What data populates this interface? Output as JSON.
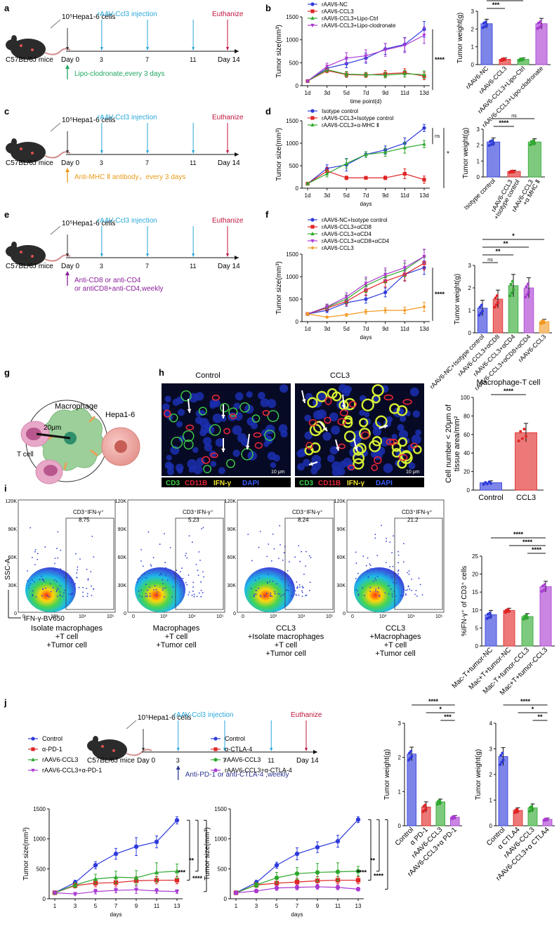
{
  "colors": {
    "blue": "#2f3bdc",
    "red": "#e02525",
    "green": "#2ea82e",
    "purple": "#a93ad1",
    "orange": "#f29a25",
    "cyan": "#2aa7d9",
    "darkred": "#c0143c",
    "lipo": "#1fa65f",
    "mhc": "#e89b1b",
    "cd": "#8a1e9a",
    "pd": "#2c3590"
  },
  "schemes": [
    {
      "panel": "a",
      "cells": "10⁵Hepa1-6 cells",
      "mice": "C57BL/6J mice",
      "inj": "rAAV-Ccl3 injection",
      "euth": "Euthanize",
      "day0": "Day 0",
      "d3": "3",
      "d7": "7",
      "d11": "11",
      "d14": "Day 14",
      "treat": [
        "Lipo-clodronate,every 3 days"
      ]
    },
    {
      "panel": "c",
      "cells": "10⁵Hepa1-6 cells",
      "mice": "C57BL/6J mice",
      "inj": "rAAV-Ccl3 injection",
      "euth": "Euthanize",
      "day0": "Day 0",
      "d3": "3",
      "d7": "7",
      "d11": "11",
      "d14": "Day 14",
      "treat": [
        "Anti-MHC Ⅱ antibody，every 3 days"
      ]
    },
    {
      "panel": "e",
      "cells": "10⁵Hepa1-6 cells",
      "mice": "C57BL/6J mice",
      "inj": "rAAV-Ccl3 injection",
      "euth": "Euthanize",
      "day0": "Day 0",
      "d3": "3",
      "d7": "7",
      "d11": "11",
      "d14": "Day 14",
      "treat": [
        "Anti-CD8 or anti-CD4",
        "or antiCD8+anti-CD4,weekly"
      ]
    },
    {
      "panel": "j",
      "cells": "10⁵Hepa1-6 cells",
      "mice": "C57BL/6J mice",
      "inj": "rAAV-Ccl3 injection",
      "euth": "Euthanize",
      "day0": "Day 0",
      "d3": "3",
      "d7": "7",
      "d11": "11",
      "d14": "Day 14",
      "treat": [
        "Anti-PD-1 or anti-CTLA-4 ,weekly"
      ]
    }
  ],
  "chart_data": [
    {
      "id": "b",
      "type": "line",
      "ylabel": "Tumor size(mm³)",
      "xlabel": "time point(d)",
      "categories": [
        "1d",
        "3d",
        "5d",
        "7d",
        "9d",
        "11d",
        "13d"
      ],
      "ylim": [
        0,
        1500
      ],
      "yticks": [
        0,
        500,
        1000,
        1500
      ],
      "series": [
        {
          "name": "rAAV6-NC",
          "color": "blue",
          "marker": "circle",
          "values": [
            100,
            380,
            480,
            600,
            800,
            900,
            1230
          ],
          "err": [
            20,
            60,
            90,
            110,
            120,
            150,
            170
          ]
        },
        {
          "name": "rAAV6-CCL3",
          "color": "red",
          "marker": "square",
          "values": [
            100,
            330,
            240,
            230,
            260,
            280,
            210
          ],
          "err": [
            20,
            50,
            60,
            50,
            70,
            90,
            80
          ]
        },
        {
          "name": "rAAV6-CCL3+Lipo-Ctrl",
          "color": "green",
          "marker": "triangle",
          "values": [
            100,
            350,
            250,
            240,
            230,
            260,
            240
          ],
          "err": [
            20,
            50,
            60,
            50,
            60,
            70,
            80
          ]
        },
        {
          "name": "rAAV6-CCL3+Lipo-clodronate",
          "color": "purple",
          "marker": "tridown",
          "values": [
            100,
            420,
            600,
            650,
            780,
            880,
            1100
          ],
          "err": [
            20,
            70,
            120,
            130,
            140,
            160,
            180
          ]
        }
      ],
      "sig": "****"
    },
    {
      "id": "b-bar",
      "type": "bar",
      "ylabel": "Tumor weight(g)",
      "ylim": [
        0,
        3
      ],
      "yticks": [
        0,
        1,
        2,
        3
      ],
      "categories": [
        "rAAV6-NC",
        "rAAV6-CCL3",
        "rAAV6-CCL3+Lipo-Ctrl",
        "rAAV6-CCL3+Lipo-clodronate"
      ],
      "values": [
        2.3,
        0.3,
        0.3,
        2.3
      ],
      "err": [
        0.25,
        0.08,
        0.08,
        0.3
      ],
      "colors": [
        "blue",
        "red",
        "green",
        "purple"
      ],
      "brackets": [
        {
          "from": 0,
          "to": 3,
          "label": "ns"
        },
        {
          "from": 0,
          "to": 2,
          "label": "***"
        },
        {
          "from": 0,
          "to": 1,
          "label": "***"
        }
      ]
    },
    {
      "id": "d",
      "type": "line",
      "ylabel": "Tumor size(mm³)",
      "xlabel": "days",
      "categories": [
        "1d",
        "3d",
        "5d",
        "7d",
        "9d",
        "11d",
        "13d"
      ],
      "ylim": [
        0,
        1500
      ],
      "yticks": [
        0,
        500,
        1000,
        1500
      ],
      "series": [
        {
          "name": "Isotype control",
          "color": "blue",
          "marker": "circle",
          "values": [
            100,
            440,
            520,
            750,
            850,
            1000,
            1340
          ],
          "err": [
            20,
            80,
            140,
            60,
            90,
            120,
            80
          ]
        },
        {
          "name": "rAAV6-CCL3+Isotype control",
          "color": "red",
          "marker": "square",
          "values": [
            100,
            380,
            230,
            230,
            230,
            320,
            190
          ],
          "err": [
            20,
            80,
            40,
            30,
            40,
            110,
            80
          ]
        },
        {
          "name": "rAAV6-CCL3+α-MHC Ⅱ",
          "color": "green",
          "marker": "triangle",
          "values": [
            100,
            320,
            550,
            750,
            800,
            900,
            980
          ],
          "err": [
            20,
            70,
            100,
            60,
            90,
            120,
            80
          ]
        }
      ],
      "sig_inner": "ns",
      "sig": "*"
    },
    {
      "id": "d-bar",
      "type": "bar",
      "ylabel": "Tumor weight(g)",
      "ylim": [
        0,
        3
      ],
      "yticks": [
        0,
        1,
        2,
        3
      ],
      "categories": [
        "Isotype control",
        "rAAV6-CCL3 +Isotype control",
        "rAAV6-CCL3 +α MHC Ⅱ"
      ],
      "values": [
        2.2,
        0.35,
        2.2
      ],
      "err": [
        0.25,
        0.07,
        0.2
      ],
      "colors": [
        "blue",
        "red",
        "green"
      ],
      "brackets": [
        {
          "from": 0,
          "to": 2,
          "label": "ns"
        },
        {
          "from": 0,
          "to": 1,
          "label": "****"
        }
      ]
    },
    {
      "id": "f",
      "type": "line",
      "ylabel": "Tumor size(mm³)",
      "xlabel": "days",
      "categories": [
        "1d",
        "3d",
        "5d",
        "7d",
        "9d",
        "11d",
        "13d"
      ],
      "ylim": [
        0,
        1500
      ],
      "yticks": [
        0,
        500,
        1000,
        1500
      ],
      "series": [
        {
          "name": "rAAV6-NC+Isotype control",
          "color": "blue",
          "marker": "circle",
          "values": [
            170,
            250,
            420,
            500,
            650,
            1050,
            1200
          ],
          "err": [
            30,
            50,
            80,
            90,
            100,
            140,
            150
          ]
        },
        {
          "name": "rAAV6-CCL3+αCD8",
          "color": "red",
          "marker": "square",
          "values": [
            170,
            300,
            450,
            700,
            900,
            1050,
            1300
          ],
          "err": [
            30,
            60,
            80,
            120,
            130,
            150,
            150
          ]
        },
        {
          "name": "rAAV6-CCL3+αCD4",
          "color": "green",
          "marker": "triangle",
          "values": [
            170,
            320,
            500,
            800,
            1000,
            1150,
            1450
          ],
          "err": [
            30,
            60,
            90,
            150,
            140,
            150,
            150
          ]
        },
        {
          "name": "rAAV6-CCL3+αCD8+αCD4",
          "color": "purple",
          "marker": "tridown",
          "values": [
            170,
            330,
            550,
            850,
            1050,
            1200,
            1450
          ],
          "err": [
            30,
            60,
            90,
            140,
            140,
            160,
            160
          ]
        },
        {
          "name": "rAAV6-CCL3",
          "color": "orange",
          "marker": "diamond",
          "values": [
            170,
            100,
            150,
            220,
            250,
            250,
            330
          ],
          "err": [
            30,
            20,
            30,
            50,
            60,
            70,
            100
          ]
        }
      ],
      "sig": "****"
    },
    {
      "id": "f-bar",
      "type": "bar",
      "ylabel": "Tumor weight(g)",
      "ylim": [
        0,
        3
      ],
      "yticks": [
        0,
        1,
        2,
        3
      ],
      "categories": [
        "rAAV6-NC+Isotype control",
        "rAAV6-CCL3+αCD8",
        "rAAV6-CCL3+αCD4",
        "rAAV6-CCL3+αCD8+αCD4",
        "rAAV6-CCL3"
      ],
      "values": [
        1.1,
        1.5,
        2.1,
        2.0,
        0.5
      ],
      "err": [
        0.35,
        0.4,
        0.5,
        0.45,
        0.1
      ],
      "colors": [
        "blue",
        "red",
        "green",
        "purple",
        "orange"
      ],
      "brackets": [
        {
          "from": 0,
          "to": 4,
          "label": "*"
        },
        {
          "from": 0,
          "to": 3,
          "label": "**"
        },
        {
          "from": 0,
          "to": 2,
          "label": "**"
        },
        {
          "from": 0,
          "to": 1,
          "label": "ns"
        }
      ]
    },
    {
      "id": "h-bar",
      "type": "bar",
      "title": "Macrophage-T cell",
      "ylabel": "Cell number < 20μm of tissue area/mm²",
      "ylim": [
        0,
        100
      ],
      "yticks": [
        0,
        20,
        40,
        60,
        80,
        100
      ],
      "categories": [
        "Control",
        "CCL3"
      ],
      "values": [
        8,
        62
      ],
      "err": [
        2,
        10
      ],
      "colors": [
        "blue",
        "red"
      ],
      "brackets": [
        {
          "from": 0,
          "to": 1,
          "label": "****"
        }
      ]
    },
    {
      "id": "i-bar",
      "type": "bar",
      "ylabel": "%IFN-γ⁺ of CD3⁺ cells",
      "ylim": [
        0,
        25
      ],
      "yticks": [
        0,
        5,
        10,
        15,
        20,
        25
      ],
      "categories": [
        "Mac-T+tumor-NC",
        "Mac+T+tumor-NC",
        "Mac-T+tumor-CCL3",
        "Mac+T+tumor-CCL3"
      ],
      "values": [
        8.7,
        9.9,
        8.2,
        16.5
      ],
      "err": [
        1.2,
        0.6,
        0.8,
        1.5
      ],
      "colors": [
        "blue",
        "red",
        "green",
        "purple"
      ],
      "brackets": [
        {
          "from": 0,
          "to": 3,
          "label": "****"
        },
        {
          "from": 1,
          "to": 3,
          "label": "****"
        },
        {
          "from": 2,
          "to": 3,
          "label": "****"
        }
      ]
    },
    {
      "id": "j1",
      "type": "line",
      "ylabel": "Tumor size(mm³)",
      "xlabel": "days",
      "categories": [
        "1",
        "3",
        "5",
        "7",
        "9",
        "11",
        "13"
      ],
      "ylim": [
        0,
        1500
      ],
      "yticks": [
        0,
        500,
        1000,
        1500
      ],
      "series": [
        {
          "name": "Control",
          "color": "blue",
          "marker": "circle",
          "values": [
            100,
            270,
            560,
            750,
            870,
            950,
            1310
          ],
          "err": [
            20,
            40,
            60,
            90,
            150,
            100,
            60
          ]
        },
        {
          "name": "α-PD-1",
          "color": "red",
          "marker": "square",
          "values": [
            100,
            220,
            260,
            270,
            300,
            310,
            310
          ],
          "err": [
            20,
            40,
            60,
            60,
            70,
            60,
            60
          ]
        },
        {
          "name": "rAAV6-CCL3",
          "color": "green",
          "marker": "triangle",
          "values": [
            100,
            230,
            330,
            360,
            350,
            440,
            460
          ],
          "err": [
            20,
            40,
            80,
            100,
            120,
            160,
            120
          ]
        },
        {
          "name": "rAAV6-CCL3+α-PD-1",
          "color": "purple",
          "marker": "tridown",
          "values": [
            100,
            80,
            120,
            140,
            150,
            130,
            120
          ],
          "err": [
            20,
            20,
            40,
            40,
            60,
            40,
            30
          ]
        }
      ],
      "brackets": [
        "****",
        "**",
        "***"
      ]
    },
    {
      "id": "j2",
      "type": "line",
      "ylabel": "Tumor size(mm³)",
      "xlabel": "days",
      "categories": [
        "1",
        "3",
        "5",
        "7",
        "9",
        "11",
        "13"
      ],
      "ylim": [
        0,
        1500
      ],
      "yticks": [
        0,
        500,
        1000,
        1500
      ],
      "series": [
        {
          "name": "Control",
          "color": "blue",
          "marker": "circle",
          "values": [
            100,
            270,
            560,
            750,
            860,
            960,
            1320
          ],
          "err": [
            20,
            40,
            50,
            100,
            90,
            100,
            50
          ]
        },
        {
          "name": "α-CTLA-4",
          "color": "red",
          "marker": "square",
          "values": [
            100,
            230,
            260,
            280,
            300,
            310,
            310
          ],
          "err": [
            20,
            40,
            60,
            60,
            70,
            60,
            60
          ]
        },
        {
          "name": "rAAV6-CCL3",
          "color": "green",
          "marker": "circle",
          "values": [
            100,
            230,
            350,
            420,
            440,
            450,
            460
          ],
          "err": [
            20,
            40,
            90,
            100,
            150,
            150,
            80
          ]
        },
        {
          "name": "rAAV6-CCL3+α-CTLA-4",
          "color": "purple",
          "marker": "circle",
          "values": [
            100,
            130,
            180,
            190,
            200,
            190,
            160
          ],
          "err": [
            20,
            30,
            40,
            40,
            40,
            40,
            30
          ]
        }
      ],
      "brackets": [
        "****",
        "**",
        "****"
      ]
    },
    {
      "id": "j-bar1",
      "type": "bar",
      "ylabel": "Tumor weight(g)",
      "ylim": [
        0,
        3
      ],
      "yticks": [
        0,
        1,
        2,
        3
      ],
      "categories": [
        "Control",
        "α PD-1",
        "rAAV6-CCL3",
        "rAAV6-CCL3+α PD-1"
      ],
      "values": [
        2.1,
        0.55,
        0.7,
        0.25
      ],
      "err": [
        0.2,
        0.15,
        0.08,
        0.05
      ],
      "colors": [
        "blue",
        "red",
        "green",
        "purple"
      ],
      "brackets": [
        {
          "from": 0,
          "to": 3,
          "label": "****"
        },
        {
          "from": 1,
          "to": 3,
          "label": "*"
        },
        {
          "from": 2,
          "to": 3,
          "label": "***"
        }
      ]
    },
    {
      "id": "j-bar2",
      "type": "bar",
      "ylabel": "Tumor weight(g)",
      "ylim": [
        0,
        4
      ],
      "yticks": [
        0,
        1,
        2,
        3,
        4
      ],
      "categories": [
        "Control",
        "α CTLA4",
        "rAAV6-CCL3",
        "rAAV6-CCL3+α CTLA4"
      ],
      "values": [
        2.7,
        0.6,
        0.7,
        0.25
      ],
      "err": [
        0.35,
        0.1,
        0.15,
        0.05
      ],
      "colors": [
        "blue",
        "red",
        "green",
        "purple"
      ],
      "brackets": [
        {
          "from": 0,
          "to": 3,
          "label": "****"
        },
        {
          "from": 1,
          "to": 3,
          "label": "*"
        },
        {
          "from": 2,
          "to": 3,
          "label": "**"
        }
      ]
    }
  ],
  "panel_g": {
    "macrophage": "Macrophage",
    "tcell": "T cell",
    "hepa": "Hepa1-6",
    "dist": "20μm"
  },
  "panel_h": {
    "titles": [
      "Control",
      "CCL3"
    ],
    "stain": [
      "CD3",
      "CD11B",
      "IFN-γ",
      "DAPI"
    ],
    "scalebar": "10 μm"
  },
  "panel_i": {
    "gate_label": "CD3⁺IFN-γ⁺",
    "gate_values": [
      "8.75",
      "5.23",
      "8.24",
      "21.2"
    ],
    "y_axis": "SSC-A",
    "x_axis": "IFN-γ-BV650",
    "yticks": [
      "120K",
      "90K",
      "60K",
      "30K",
      "0"
    ],
    "xticks": [
      "0",
      "10³",
      "10⁴",
      "10⁵"
    ],
    "conditions": [
      [
        "Isolate macrophages",
        "+T cell",
        "+Tumor cell"
      ],
      [
        "Macrophages",
        "+T cell",
        "+Tumor cell"
      ],
      [
        "CCL3",
        "+Isolate macrophages",
        "+T cell",
        "+Tumor cell"
      ],
      [
        "CCL3",
        "+Macrophages",
        "+T cell",
        "+Tumor cell"
      ]
    ]
  }
}
